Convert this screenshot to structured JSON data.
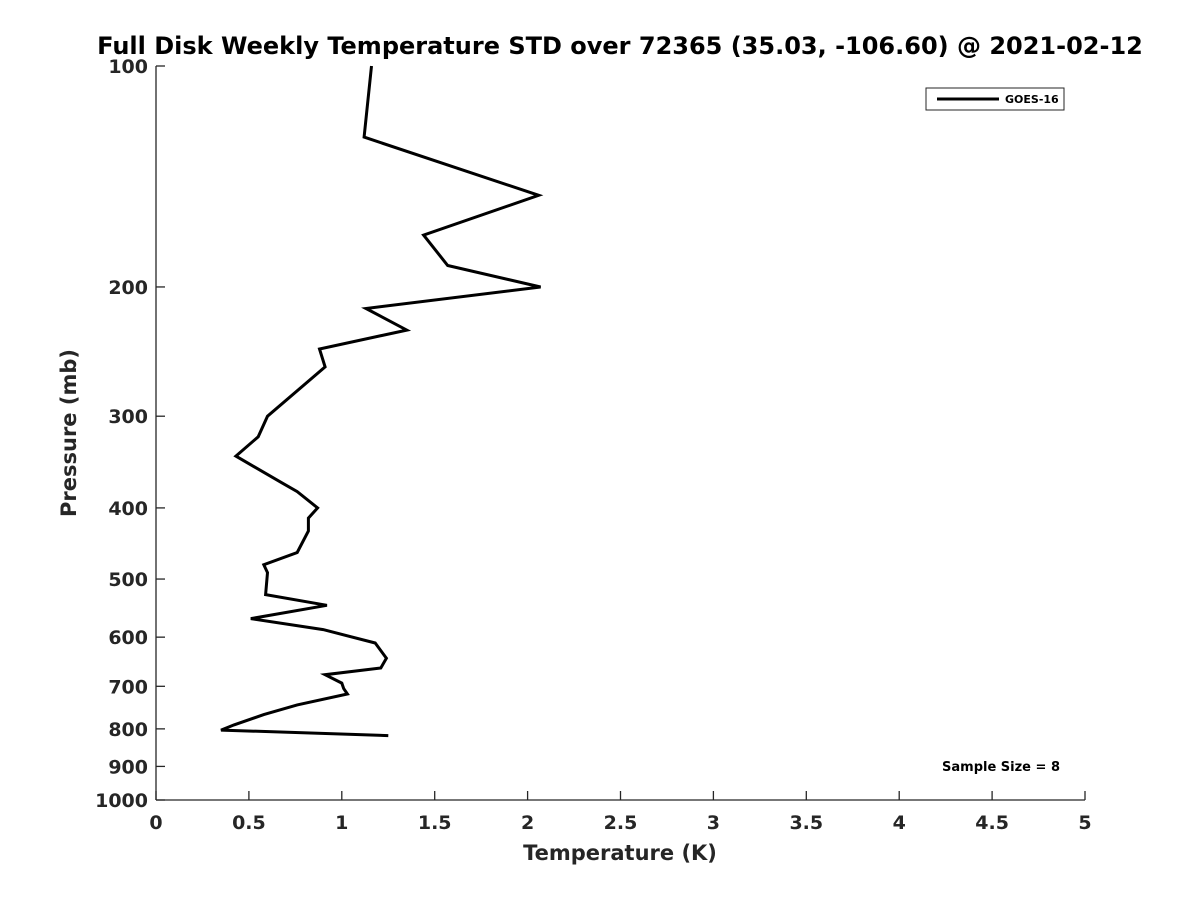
{
  "chart_data": {
    "type": "line",
    "title": "Full Disk Weekly Temperature STD over 72365 (35.03, -106.60) @ 2021-02-12",
    "xlabel": "Temperature (K)",
    "ylabel": "Pressure (mb)",
    "xlim": [
      0,
      5
    ],
    "ylim": [
      100,
      1000
    ],
    "y_scale": "log",
    "y_reversed": true,
    "x_ticks": [
      "0",
      "0.5",
      "1",
      "1.5",
      "2",
      "2.5",
      "3",
      "3.5",
      "4",
      "4.5",
      "5"
    ],
    "y_ticks": [
      "100",
      "200",
      "300",
      "400",
      "500",
      "600",
      "700",
      "800",
      "900",
      "1000"
    ],
    "grid": false,
    "legend_position": "top-right",
    "annotation": "Sample Size = 8",
    "series": [
      {
        "name": "GOES-16",
        "color": "#000000",
        "points": [
          [
            1.16,
            100
          ],
          [
            1.12,
            125
          ],
          [
            2.06,
            150
          ],
          [
            1.44,
            170
          ],
          [
            1.57,
            187
          ],
          [
            2.07,
            200
          ],
          [
            1.13,
            214
          ],
          [
            1.35,
            229
          ],
          [
            0.88,
            243
          ],
          [
            0.91,
            257
          ],
          [
            0.6,
            300
          ],
          [
            0.55,
            320
          ],
          [
            0.43,
            340
          ],
          [
            0.68,
            370
          ],
          [
            0.76,
            380
          ],
          [
            0.87,
            400
          ],
          [
            0.82,
            413
          ],
          [
            0.82,
            430
          ],
          [
            0.76,
            460
          ],
          [
            0.58,
            478
          ],
          [
            0.6,
            490
          ],
          [
            0.59,
            525
          ],
          [
            0.92,
            543
          ],
          [
            0.51,
            566
          ],
          [
            0.9,
            586
          ],
          [
            1.18,
            611
          ],
          [
            1.24,
            641
          ],
          [
            1.21,
            661
          ],
          [
            0.91,
            675
          ],
          [
            1.0,
            693
          ],
          [
            1.01,
            705
          ],
          [
            1.03,
            717
          ],
          [
            0.76,
            742
          ],
          [
            0.58,
            765
          ],
          [
            0.42,
            790
          ],
          [
            0.35,
            803
          ],
          [
            1.25,
            817
          ]
        ]
      }
    ]
  }
}
